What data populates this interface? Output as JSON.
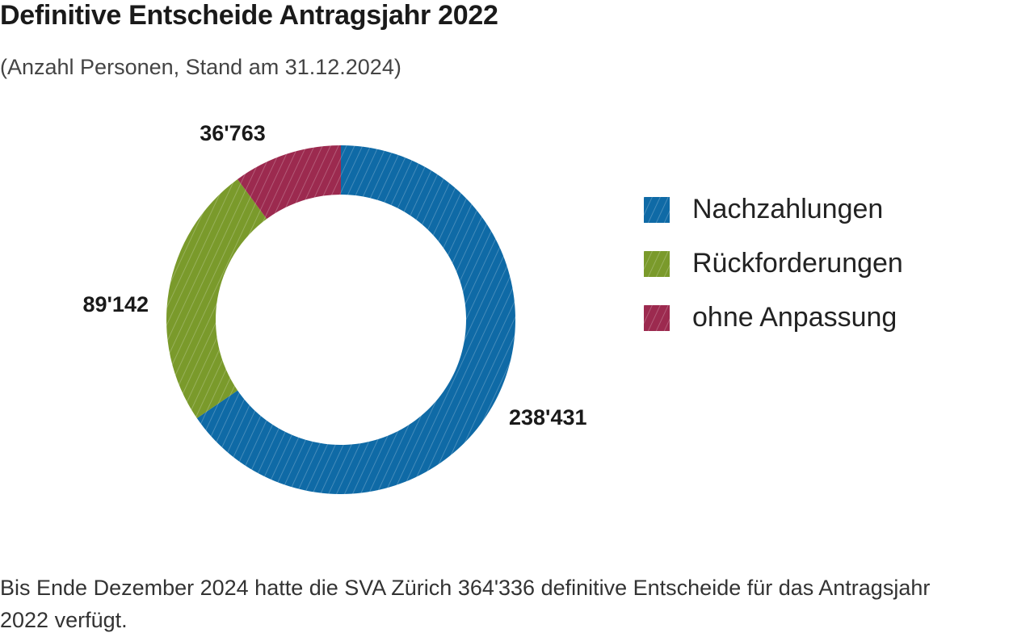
{
  "header": {
    "title": "Definitive Entscheide Antragsjahr 2022",
    "subtitle": "(Anzahl Personen, Stand am 31.12.2024)"
  },
  "chart_data": {
    "type": "pie",
    "variant": "donut",
    "categories": [
      "Nachzahlungen",
      "Rückforderungen",
      "ohne Anpassung"
    ],
    "values": [
      238431,
      89142,
      36763
    ],
    "value_labels": [
      "238'431",
      "89'142",
      "36'763"
    ],
    "colors": [
      "#0f6aa6",
      "#7a9a2b",
      "#9c2a4f"
    ],
    "legend_position": "right"
  },
  "footnote": {
    "text": "Bis Ende Dezember 2024 hatte die SVA Zürich 364'336 definitive Entscheide für das Antragsjahr 2022 verfügt."
  }
}
